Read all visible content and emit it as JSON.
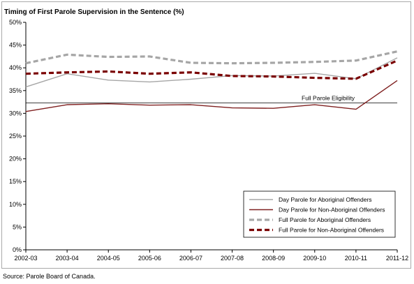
{
  "chart_data": {
    "type": "line",
    "title": "Timing of First Parole Supervision in the Sentence (%)",
    "categories": [
      "2002-03",
      "2003-04",
      "2004-05",
      "2005-06",
      "2006-07",
      "2007-08",
      "2008-09",
      "2009-10",
      "2010-11",
      "2011-12"
    ],
    "ylim": [
      0,
      50
    ],
    "yticks": [
      "0%",
      "5%",
      "10%",
      "15%",
      "20%",
      "25%",
      "30%",
      "35%",
      "40%",
      "45%",
      "50%"
    ],
    "series": [
      {
        "name": "Day Parole for Aboriginal Offenders",
        "color": "#a6a6a6",
        "style": "solid",
        "values": [
          35.8,
          38.7,
          37.3,
          36.9,
          37.5,
          38.3,
          38.2,
          38.8,
          37.6,
          42.2
        ]
      },
      {
        "name": "Day Parole for Non-Aboriginal Offenders",
        "color": "#7f2020",
        "style": "solid",
        "values": [
          30.4,
          31.9,
          32.1,
          31.8,
          31.9,
          31.2,
          31.1,
          31.9,
          30.9,
          37.2
        ]
      },
      {
        "name": "Full Parole for Aboriginal Offenders",
        "color": "#a6a6a6",
        "style": "dashed",
        "values": [
          41.0,
          42.9,
          42.4,
          42.5,
          41.1,
          41.0,
          41.1,
          41.3,
          41.6,
          43.6
        ]
      },
      {
        "name": "Full Parole for Non-Aboriginal Offenders",
        "color": "#7a0000",
        "style": "dashed",
        "values": [
          38.7,
          39.0,
          39.2,
          38.7,
          39.0,
          38.2,
          38.1,
          37.8,
          37.6,
          41.6
        ]
      }
    ],
    "reference_line": {
      "label": "Full Parole Eligibility",
      "value": 32.3
    },
    "grid": false,
    "legend_position": "bottom-right",
    "source": "Source:  Parole Board of Canada."
  }
}
